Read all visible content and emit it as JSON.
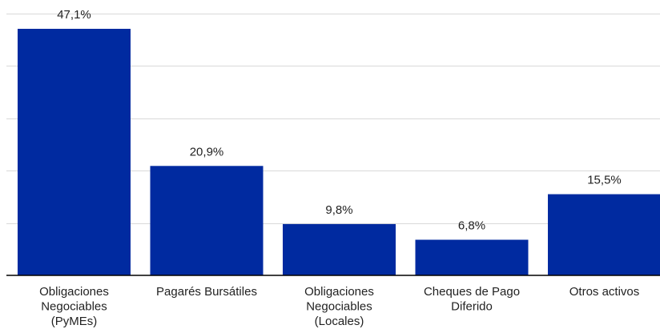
{
  "chart_data": {
    "type": "bar",
    "categories": [
      [
        "Obligaciones",
        "Negociables",
        "(PyMEs)"
      ],
      [
        "Pagarés Bursátiles"
      ],
      [
        "Obligaciones",
        "Negociables",
        "(Locales)"
      ],
      [
        "Cheques de Pago",
        "Diferido"
      ],
      [
        "Otros activos"
      ]
    ],
    "values": [
      47.1,
      20.9,
      9.8,
      6.8,
      15.5
    ],
    "value_labels": [
      "47,1%",
      "20,9%",
      "9,8%",
      "6,8%",
      "15,5%"
    ],
    "ylim": [
      0,
      50
    ],
    "gridlines": [
      0,
      10,
      20,
      30,
      40,
      50
    ],
    "grid": true,
    "bar_color": "#002aa0"
  }
}
